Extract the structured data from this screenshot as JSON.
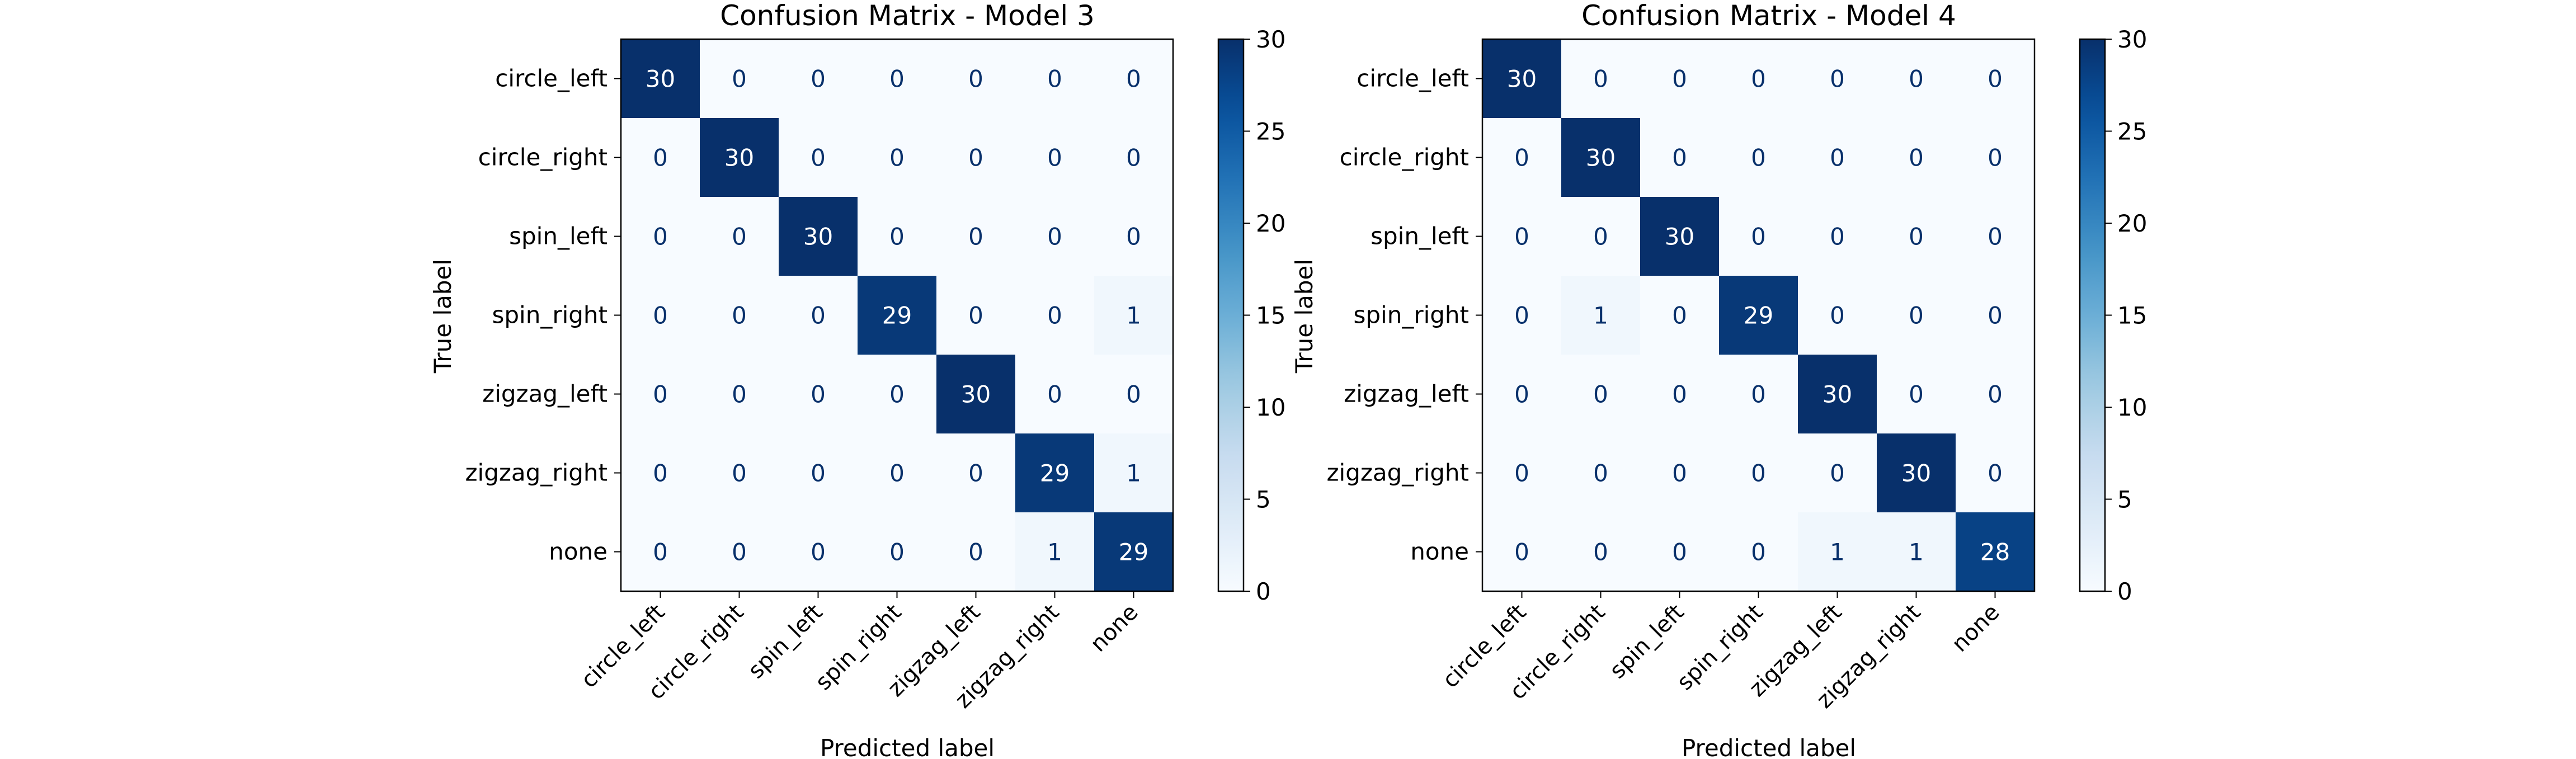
{
  "chart_data": [
    {
      "type": "heatmap",
      "title": "Confusion Matrix - Model 3",
      "xlabel": "Predicted label",
      "ylabel": "True label",
      "x_categories": [
        "circle_left",
        "circle_right",
        "spin_left",
        "spin_right",
        "zigzag_left",
        "zigzag_right",
        "none"
      ],
      "y_categories": [
        "circle_left",
        "circle_right",
        "spin_left",
        "spin_right",
        "zigzag_left",
        "zigzag_right",
        "none"
      ],
      "values": [
        [
          30,
          0,
          0,
          0,
          0,
          0,
          0
        ],
        [
          0,
          30,
          0,
          0,
          0,
          0,
          0
        ],
        [
          0,
          0,
          30,
          0,
          0,
          0,
          0
        ],
        [
          0,
          0,
          0,
          29,
          0,
          0,
          1
        ],
        [
          0,
          0,
          0,
          0,
          30,
          0,
          0
        ],
        [
          0,
          0,
          0,
          0,
          0,
          29,
          1
        ],
        [
          0,
          0,
          0,
          0,
          0,
          1,
          29
        ]
      ],
      "colorbar": {
        "range": [
          0,
          30
        ],
        "ticks": [
          0,
          5,
          10,
          15,
          20,
          25,
          30
        ]
      },
      "colormap": "Blues",
      "low_color": "#f7fbff",
      "high_color": "#08306b"
    },
    {
      "type": "heatmap",
      "title": "Confusion Matrix - Model 4",
      "xlabel": "Predicted label",
      "ylabel": "True label",
      "x_categories": [
        "circle_left",
        "circle_right",
        "spin_left",
        "spin_right",
        "zigzag_left",
        "zigzag_right",
        "none"
      ],
      "y_categories": [
        "circle_left",
        "circle_right",
        "spin_left",
        "spin_right",
        "zigzag_left",
        "zigzag_right",
        "none"
      ],
      "values": [
        [
          30,
          0,
          0,
          0,
          0,
          0,
          0
        ],
        [
          0,
          30,
          0,
          0,
          0,
          0,
          0
        ],
        [
          0,
          0,
          30,
          0,
          0,
          0,
          0
        ],
        [
          0,
          1,
          0,
          29,
          0,
          0,
          0
        ],
        [
          0,
          0,
          0,
          0,
          30,
          0,
          0
        ],
        [
          0,
          0,
          0,
          0,
          0,
          30,
          0
        ],
        [
          0,
          0,
          0,
          0,
          1,
          1,
          28
        ]
      ],
      "colorbar": {
        "range": [
          0,
          30
        ],
        "ticks": [
          0,
          5,
          10,
          15,
          20,
          25,
          30
        ]
      },
      "colormap": "Blues",
      "low_color": "#f7fbff",
      "high_color": "#08306b"
    }
  ]
}
